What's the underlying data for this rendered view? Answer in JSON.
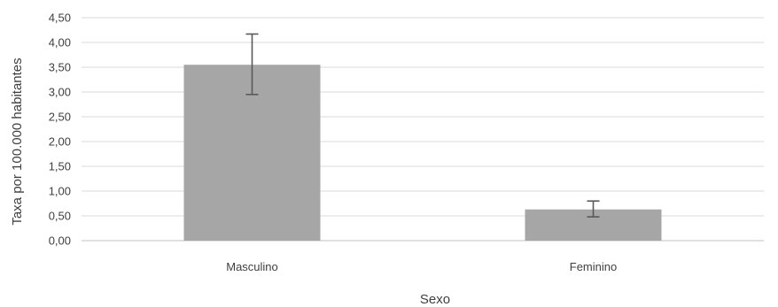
{
  "chart_data": {
    "type": "bar",
    "title": "",
    "xlabel": "Sexo",
    "ylabel": "Taxa por 100.000 habitantes",
    "categories": [
      "Masculino",
      "Feminino"
    ],
    "values": [
      3.55,
      0.63
    ],
    "error_low": [
      2.95,
      0.48
    ],
    "error_high": [
      4.17,
      0.8
    ],
    "ylim": [
      0,
      4.5
    ],
    "yticks": [
      "0,00",
      "0,50",
      "1,00",
      "1,50",
      "2,00",
      "2,50",
      "3,00",
      "3,50",
      "4,00",
      "4,50"
    ],
    "ytick_values": [
      0,
      0.5,
      1.0,
      1.5,
      2.0,
      2.5,
      3.0,
      3.5,
      4.0,
      4.5
    ],
    "grid": true,
    "legend": "none",
    "colors": {
      "bar": "#a6a6a6",
      "error_bar": "#595959",
      "grid": "#d9d9d9"
    }
  }
}
